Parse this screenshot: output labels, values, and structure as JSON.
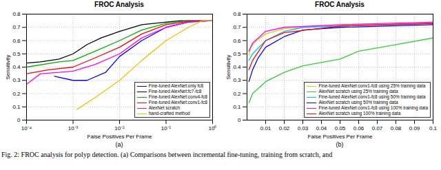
{
  "caption": "Fig. 2: FROC analysis for polyp detection. (a) Comparisons between incremental fine-tuning, training from scratch, and",
  "chart_data": [
    {
      "type": "line",
      "title": "FROC Analysis",
      "subtitle": "(a)",
      "x_label": "False Positives Per Frame",
      "y_label": "Sensitivity",
      "log": "x",
      "grid": true,
      "legend": "lower right",
      "xlim": [
        0.0001,
        1
      ],
      "xticks": [
        {
          "value": 0.0001,
          "label": "10⁻⁴"
        },
        {
          "value": 0.001,
          "label": "10⁻³"
        },
        {
          "value": 0.01,
          "label": "10⁻²"
        },
        {
          "value": 0.1,
          "label": "10⁻¹"
        },
        {
          "value": 1,
          "label": "10⁰"
        }
      ],
      "ylim": [
        0,
        0.8
      ],
      "yticks": [
        0,
        0.1,
        0.2,
        0.3,
        0.4,
        0.5,
        0.6,
        0.7,
        0.8
      ],
      "series": [
        {
          "name": "Fine-tuned AlexNet:only fc8",
          "color": "#0000ff",
          "x": [
            0.0004,
            0.001,
            0.002,
            0.005,
            0.01,
            0.03,
            0.1,
            0.3,
            1
          ],
          "values": [
            0.33,
            0.3,
            0.3,
            0.36,
            0.48,
            0.6,
            0.7,
            0.74,
            0.75
          ]
        },
        {
          "name": "Fine-tuned AlexNet:fc7-fc8",
          "color": "#000000",
          "x": [
            0.0001,
            0.0002,
            0.0005,
            0.001,
            0.002,
            0.004,
            0.01,
            0.03,
            0.1,
            0.2,
            1
          ],
          "values": [
            0.43,
            0.44,
            0.46,
            0.5,
            0.57,
            0.62,
            0.67,
            0.72,
            0.74,
            0.75,
            0.75
          ]
        },
        {
          "name": "Fine-tuned AlexNet:conv4-fc8",
          "color": "#00b000",
          "x": [
            0.0001,
            0.0005,
            0.001,
            0.003,
            0.01,
            0.03,
            0.1,
            0.3,
            1
          ],
          "values": [
            0.4,
            0.44,
            0.45,
            0.52,
            0.6,
            0.68,
            0.73,
            0.75,
            0.75
          ]
        },
        {
          "name": "Fine-tuned AlexNet:conv1-fc8",
          "color": "#ff0000",
          "x": [
            0.0001,
            0.0003,
            0.001,
            0.003,
            0.01,
            0.03,
            0.1,
            0.3,
            1
          ],
          "values": [
            0.35,
            0.38,
            0.4,
            0.47,
            0.55,
            0.65,
            0.72,
            0.745,
            0.75
          ]
        },
        {
          "name": "AlexNet scratch",
          "color": "#ff00ff",
          "x": [
            0.0001,
            0.0002,
            0.0005,
            0.001,
            0.003,
            0.01,
            0.03,
            0.1,
            0.3,
            1
          ],
          "values": [
            0.27,
            0.35,
            0.36,
            0.37,
            0.42,
            0.5,
            0.62,
            0.7,
            0.74,
            0.75
          ]
        },
        {
          "name": "hand-crafted method",
          "color": "#f0c000",
          "x": [
            0.0012,
            0.003,
            0.01,
            0.03,
            0.1,
            0.3,
            0.6,
            1
          ],
          "values": [
            0.08,
            0.17,
            0.3,
            0.45,
            0.6,
            0.7,
            0.75,
            0.75
          ]
        }
      ]
    },
    {
      "type": "line",
      "title": "FROC Analysis",
      "subtitle": "(b)",
      "x_label": "False Positives Per Frame",
      "y_label": "Sensitivity",
      "grid": true,
      "legend": "lower right",
      "xlim": [
        0,
        0.1
      ],
      "xticks": [
        0.01,
        0.02,
        0.03,
        0.04,
        0.05,
        0.06,
        0.07,
        0.08,
        0.09,
        0.1
      ],
      "ylim": [
        0,
        0.8
      ],
      "yticks": [
        0,
        0.1,
        0.2,
        0.3,
        0.4,
        0.5,
        0.6,
        0.7,
        0.8
      ],
      "series": [
        {
          "name": "Fine-tuned AlexNet:conv1-fc8 using 25% training data",
          "color": "#d4d400",
          "x": [
            0.001,
            0.002,
            0.005,
            0.01,
            0.02,
            0.04,
            0.06,
            0.1
          ],
          "values": [
            0.49,
            0.55,
            0.6,
            0.65,
            0.69,
            0.71,
            0.72,
            0.73
          ]
        },
        {
          "name": "AlexNet scratch using 25% training data",
          "color": "#33cc33",
          "x": [
            0.001,
            0.003,
            0.01,
            0.02,
            0.03,
            0.05,
            0.06,
            0.08,
            0.1
          ],
          "values": [
            0.13,
            0.2,
            0.29,
            0.36,
            0.41,
            0.46,
            0.52,
            0.57,
            0.62
          ]
        },
        {
          "name": "Fine-tuned AlexNet:conv1-fc8 using 50% training data",
          "color": "#00bfff",
          "x": [
            0.001,
            0.003,
            0.01,
            0.02,
            0.03,
            0.05,
            0.1
          ],
          "values": [
            0.45,
            0.5,
            0.6,
            0.67,
            0.7,
            0.71,
            0.73
          ]
        },
        {
          "name": "AlexNet scratch using 50% training data",
          "color": "#0000ff",
          "x": [
            0.001,
            0.003,
            0.006,
            0.01,
            0.02,
            0.03,
            0.05,
            0.1
          ],
          "values": [
            0.29,
            0.38,
            0.47,
            0.55,
            0.63,
            0.68,
            0.7,
            0.72
          ]
        },
        {
          "name": "Fine-tuned AlexNet:conv1-fc8 using 100% training data",
          "color": "#ff00ff",
          "x": [
            0.001,
            0.003,
            0.01,
            0.02,
            0.05,
            0.1
          ],
          "values": [
            0.52,
            0.58,
            0.67,
            0.7,
            0.72,
            0.74
          ]
        },
        {
          "name": "AlexNet scratch using 100% training data",
          "color": "#ff0000",
          "x": [
            0.001,
            0.003,
            0.01,
            0.02,
            0.05,
            0.1
          ],
          "values": [
            0.38,
            0.45,
            0.6,
            0.66,
            0.71,
            0.73
          ]
        }
      ]
    }
  ]
}
